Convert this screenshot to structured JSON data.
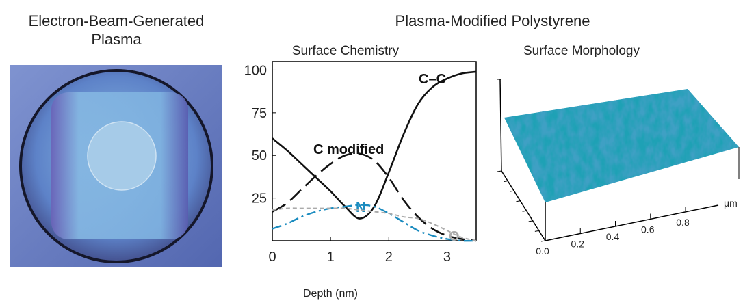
{
  "header": {
    "left_title": [
      "Electron-Beam-Generated",
      "Plasma"
    ],
    "main_title": "Plasma-Modified Polystyrene"
  },
  "chart_data": {
    "type": "line",
    "title": "Surface Chemistry",
    "x_label": "Depth (nm)",
    "x": [
      0,
      0.25,
      0.5,
      0.75,
      1,
      1.25,
      1.5,
      1.75,
      2,
      2.25,
      2.5,
      2.75,
      3,
      3.25,
      3.5
    ],
    "series": [
      {
        "name": "C–C",
        "color": "#111111",
        "line_style": "solid",
        "values": [
          60,
          53,
          45,
          37,
          29,
          20,
          13,
          20,
          40,
          62,
          80,
          90,
          95,
          98,
          99
        ]
      },
      {
        "name": "C modified",
        "color": "#111111",
        "line_style": "dashed",
        "values": [
          17,
          22,
          30,
          38,
          45,
          50,
          51,
          47,
          37,
          24,
          14,
          7,
          3,
          1,
          0
        ]
      },
      {
        "name": "N",
        "color": "#1a8bbf",
        "line_style": "dashdot",
        "values": [
          7,
          10,
          14,
          17,
          19,
          20,
          21,
          20,
          16,
          11,
          6,
          3,
          1,
          0,
          0
        ]
      },
      {
        "name": "O",
        "color": "#aaaaaa",
        "line_style": "dotted",
        "values": [
          18,
          19,
          19,
          19,
          19,
          19,
          18,
          17,
          16,
          14,
          13,
          10,
          6,
          2,
          0
        ]
      }
    ],
    "xlim": [
      0,
      3.5
    ],
    "ylim": [
      0,
      105
    ],
    "xticks": [
      0,
      1,
      2,
      3
    ],
    "yticks": [
      25,
      50,
      75,
      100
    ]
  },
  "morphology": {
    "title": "Surface Morphology",
    "x_ticks": [
      "0.0",
      "0.2",
      "0.4",
      "0.6",
      "0.8"
    ],
    "unit": "μm"
  }
}
